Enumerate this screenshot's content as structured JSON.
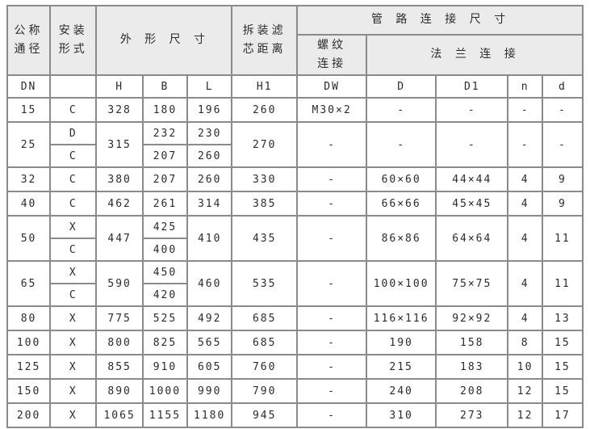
{
  "colors": {
    "border": "#8a8a8a",
    "header_background": "#ebebeb",
    "cell_background": "#ffffff",
    "text": "#2b2b2b"
  },
  "table": {
    "header": {
      "nominal_diameter": "公称\n通径",
      "installation_form": "安装\n形式",
      "overall_dimensions": "外 形 尺 寸",
      "filter_removal_distance": "拆装滤\n芯距离",
      "pipe_connection": "管 路 连 接 尺 寸",
      "thread_connection": "螺纹\n连接",
      "flange_connection": "法 兰 连 接",
      "sub_headers": [
        "DN",
        "",
        "H",
        "B",
        "L",
        "H1",
        "DW",
        "D",
        "D1",
        "n",
        "d"
      ]
    },
    "rows": [
      [
        "15",
        "C",
        "328",
        "180",
        "196",
        "260",
        "M30×2",
        "-",
        "-",
        "-",
        "-"
      ],
      [
        "25",
        "D",
        "315",
        "232",
        "230",
        "270",
        "-",
        "-",
        "-",
        "-",
        "-"
      ],
      [
        "C",
        "207",
        "260"
      ],
      [
        "32",
        "C",
        "380",
        "207",
        "260",
        "330",
        "-",
        "60×60",
        "44×44",
        "4",
        "9"
      ],
      [
        "40",
        "C",
        "462",
        "261",
        "314",
        "385",
        "-",
        "66×66",
        "45×45",
        "4",
        "9"
      ],
      [
        "50",
        "X",
        "447",
        "425",
        "410",
        "435",
        "-",
        "86×86",
        "64×64",
        "4",
        "11"
      ],
      [
        "C",
        "400"
      ],
      [
        "65",
        "X",
        "590",
        "450",
        "460",
        "535",
        "-",
        "100×100",
        "75×75",
        "4",
        "11"
      ],
      [
        "C",
        "420"
      ],
      [
        "80",
        "X",
        "775",
        "525",
        "492",
        "685",
        "-",
        "116×116",
        "92×92",
        "4",
        "13"
      ],
      [
        "100",
        "X",
        "800",
        "825",
        "565",
        "685",
        "-",
        "190",
        "158",
        "8",
        "15"
      ],
      [
        "125",
        "X",
        "855",
        "910",
        "605",
        "760",
        "-",
        "215",
        "183",
        "10",
        "15"
      ],
      [
        "150",
        "X",
        "890",
        "1000",
        "990",
        "790",
        "-",
        "240",
        "208",
        "12",
        "15"
      ],
      [
        "200",
        "X",
        "1065",
        "1155",
        "1180",
        "945",
        "-",
        "310",
        "273",
        "12",
        "17"
      ]
    ]
  }
}
